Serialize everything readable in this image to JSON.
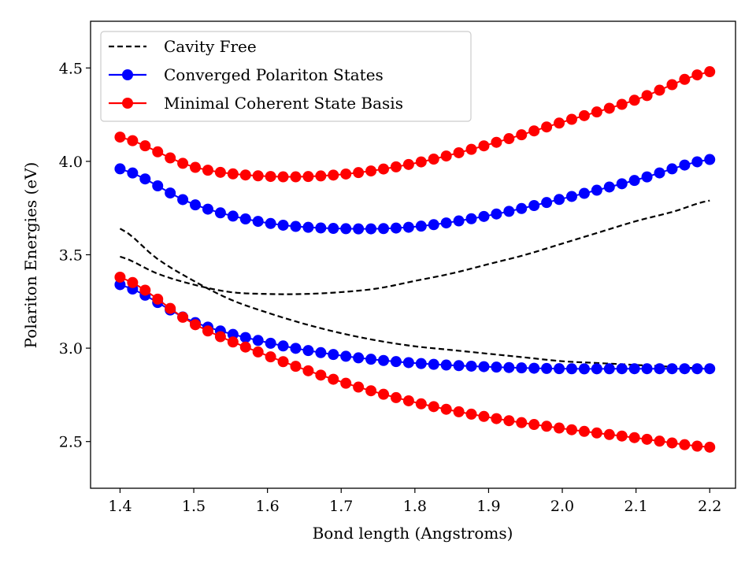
{
  "chart_data": {
    "type": "line",
    "title": "",
    "xlabel": "Bond length (Angstroms)",
    "ylabel": "Polariton Energies (eV)",
    "xlim": [
      1.36,
      2.235
    ],
    "ylim": [
      2.25,
      4.75
    ],
    "xticks": [
      "1.4",
      "1.5",
      "1.6",
      "1.7",
      "1.8",
      "1.9",
      "2.0",
      "2.1",
      "2.2"
    ],
    "yticks": [
      "2.5",
      "3.0",
      "3.5",
      "4.0",
      "4.5"
    ],
    "grid": false,
    "legend": {
      "placement": "top-left",
      "entries": [
        {
          "label": "Cavity Free",
          "color": "#000000",
          "style": "dashed"
        },
        {
          "label": "Converged Polariton States",
          "color": "#0000ff",
          "style": "line-marker"
        },
        {
          "label": "Minimal Coherent State Basis",
          "color": "#ff0000",
          "style": "line-marker"
        }
      ]
    },
    "x_range": [
      1.4,
      2.2
    ],
    "n_points": 48,
    "series": [
      {
        "name": "Cavity Free",
        "color": "#000000",
        "style": "dashed",
        "curves": [
          {
            "x": [
              1.4,
              1.45,
              1.5,
              1.55,
              1.6,
              1.65,
              1.7,
              1.75,
              1.8,
              1.85,
              1.9,
              1.95,
              2.0,
              2.05,
              2.1,
              2.15,
              2.2
            ],
            "y": [
              3.49,
              3.4,
              3.34,
              3.3,
              3.29,
              3.29,
              3.3,
              3.32,
              3.36,
              3.4,
              3.45,
              3.5,
              3.56,
              3.62,
              3.68,
              3.73,
              3.79
            ]
          },
          {
            "x": [
              1.4,
              1.45,
              1.5,
              1.55,
              1.6,
              1.65,
              1.7,
              1.75,
              1.8,
              1.85,
              1.9,
              1.95,
              2.0,
              2.05,
              2.1,
              2.15,
              2.2
            ],
            "y": [
              3.64,
              3.48,
              3.36,
              3.26,
              3.19,
              3.13,
              3.08,
              3.04,
              3.01,
              2.99,
              2.97,
              2.95,
              2.93,
              2.92,
              2.91,
              2.9,
              2.89
            ]
          }
        ]
      },
      {
        "name": "Converged Polariton States",
        "color": "#0000ff",
        "style": "line-marker",
        "curves": [
          {
            "anchors_x": [
              1.4,
              1.5,
              1.6,
              1.7,
              1.8,
              1.9,
              2.0,
              2.1,
              2.2
            ],
            "anchors_y": [
              3.96,
              3.77,
              3.67,
              3.64,
              3.65,
              3.71,
              3.8,
              3.9,
              4.01
            ]
          },
          {
            "anchors_x": [
              1.4,
              1.5,
              1.6,
              1.7,
              1.8,
              1.9,
              2.0,
              2.1,
              2.2
            ],
            "anchors_y": [
              3.34,
              3.14,
              3.03,
              2.96,
              2.92,
              2.9,
              2.89,
              2.89,
              2.89
            ]
          }
        ]
      },
      {
        "name": "Minimal Coherent State Basis",
        "color": "#ff0000",
        "style": "line-marker",
        "curves": [
          {
            "anchors_x": [
              1.4,
              1.5,
              1.6,
              1.7,
              1.8,
              1.9,
              2.0,
              2.1,
              2.2
            ],
            "anchors_y": [
              4.13,
              3.97,
              3.92,
              3.93,
              3.99,
              4.09,
              4.21,
              4.33,
              4.48
            ]
          },
          {
            "anchors_x": [
              1.4,
              1.5,
              1.6,
              1.7,
              1.8,
              1.9,
              2.0,
              2.1,
              2.2
            ],
            "anchors_y": [
              3.38,
              3.13,
              2.96,
              2.82,
              2.71,
              2.63,
              2.57,
              2.52,
              2.47
            ]
          }
        ]
      }
    ]
  }
}
